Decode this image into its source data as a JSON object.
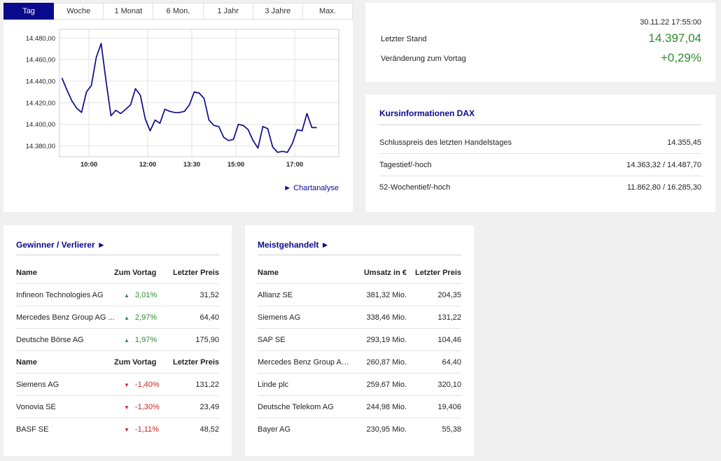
{
  "tabs": [
    "Tag",
    "Woche",
    "1 Monat",
    "6 Mon.",
    "1 Jahr",
    "3 Jahre",
    "Max."
  ],
  "chart": {
    "link_label": "► Chartanalyse",
    "line_color": "#0a0a8c",
    "chart_data": {
      "type": "line",
      "title": "",
      "xlabel": "",
      "ylabel": "",
      "x_ticks": [
        "10:00",
        "12:00",
        "13:30",
        "15:00",
        "17:00"
      ],
      "y_ticks": [
        "14.380,00",
        "14.400,00",
        "14.420,00",
        "14.440,00",
        "14.460,00",
        "14.480,00"
      ],
      "ylim": [
        14370,
        14488
      ],
      "xlim": [
        "09:00",
        "18:30"
      ],
      "grid": true,
      "x": [
        "09:05",
        "09:15",
        "09:25",
        "09:35",
        "09:45",
        "09:55",
        "10:05",
        "10:15",
        "10:25",
        "10:35",
        "10:45",
        "10:55",
        "11:05",
        "11:15",
        "11:25",
        "11:35",
        "11:45",
        "11:55",
        "12:05",
        "12:15",
        "12:25",
        "12:35",
        "12:45",
        "12:55",
        "13:05",
        "13:15",
        "13:25",
        "13:35",
        "13:45",
        "13:55",
        "14:05",
        "14:15",
        "14:25",
        "14:35",
        "14:45",
        "14:55",
        "15:05",
        "15:15",
        "15:25",
        "15:35",
        "15:45",
        "15:55",
        "16:05",
        "16:15",
        "16:25",
        "16:35",
        "16:45",
        "16:55",
        "17:05",
        "17:15",
        "17:25",
        "17:35",
        "17:45"
      ],
      "values": [
        14443,
        14432,
        14422,
        14415,
        14411,
        14430,
        14436,
        14462,
        14475,
        14440,
        14408,
        14413,
        14410,
        14414,
        14418,
        14433,
        14427,
        14405,
        14394,
        14404,
        14401,
        14414,
        14412,
        14411,
        14411,
        14412,
        14418,
        14430,
        14429,
        14424,
        14404,
        14399,
        14398,
        14388,
        14385,
        14386,
        14400,
        14399,
        14395,
        14385,
        14378,
        14398,
        14396,
        14379,
        14374,
        14375,
        14374,
        14382,
        14395,
        14394,
        14410,
        14397,
        14397
      ]
    }
  },
  "summary": {
    "timestamp": "30.11.22 17:55:00",
    "last_label": "Letzter Stand",
    "last_value": "14.397,04",
    "change_label": "Veränderung zum Vortag",
    "change_value": "+0,29%"
  },
  "kurs": {
    "title": "Kursinformationen DAX",
    "rows": [
      {
        "label": "Schlusspreis des letzten Handelstages",
        "value": "14.355,45"
      },
      {
        "label": "Tagestief/-hoch",
        "value": "14.363,32 / 14.487,70"
      },
      {
        "label": "52-Wochentief/-hoch",
        "value": "11.862,80 / 16.285,30"
      }
    ]
  },
  "gewinner": {
    "title": "Gewinner / Verlierer ►",
    "headers": [
      "Name",
      "Zum Vortag",
      "Letzter Preis"
    ],
    "winners": [
      {
        "name": "Infineon Technologies AG",
        "change": "3,01%",
        "price": "31,52"
      },
      {
        "name": "Mercedes Benz Group AG ...",
        "change": "2,97%",
        "price": "64,40"
      },
      {
        "name": "Deutsche Börse AG",
        "change": "1,97%",
        "price": "175,90"
      }
    ],
    "losers": [
      {
        "name": "Siemens AG",
        "change": "-1,40%",
        "price": "131,22"
      },
      {
        "name": "Vonovia SE",
        "change": "-1,30%",
        "price": "23,49"
      },
      {
        "name": "BASF SE",
        "change": "-1,11%",
        "price": "48,52"
      }
    ]
  },
  "meist": {
    "title": "Meistgehandelt ►",
    "headers": [
      "Name",
      "Umsatz in €",
      "Letzter Preis"
    ],
    "rows": [
      {
        "name": "Allianz SE",
        "umsatz": "381,32 Mio.",
        "price": "204,35"
      },
      {
        "name": "Siemens AG",
        "umsatz": "338,46 Mio.",
        "price": "131,22"
      },
      {
        "name": "SAP SE",
        "umsatz": "293,19 Mio.",
        "price": "104,46"
      },
      {
        "name": "Mercedes Benz Group AG...",
        "umsatz": "260,87 Mio.",
        "price": "64,40"
      },
      {
        "name": "Linde plc",
        "umsatz": "259,67 Mio.",
        "price": "320,10"
      },
      {
        "name": "Deutsche Telekom AG",
        "umsatz": "244,98 Mio.",
        "price": "19,406"
      },
      {
        "name": "Bayer AG",
        "umsatz": "230,95 Mio.",
        "price": "55,38"
      }
    ]
  },
  "colors": {
    "accent": "#0a0a8c",
    "up": "#2e8b2e",
    "down": "#d62020"
  }
}
